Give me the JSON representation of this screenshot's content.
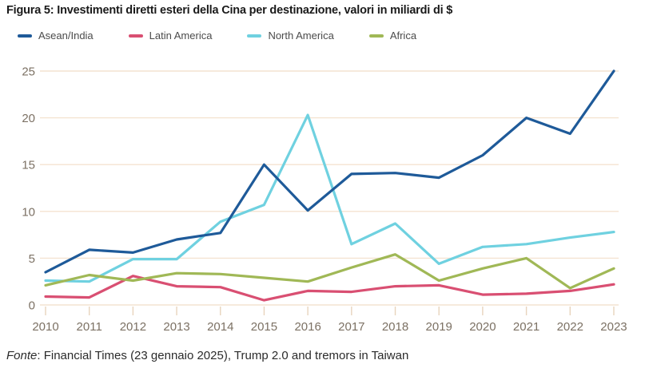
{
  "title": "Figura 5: Investimenti diretti esteri della Cina per destinazione, valori in miliardi di $",
  "source": {
    "label": "Fonte",
    "text": ": Financial Times (23 gennaio 2025), Trump 2.0 and tremors in Taiwan"
  },
  "colors": {
    "background": "#ffffff",
    "grid": "#f4e3d1",
    "tick": "#e8d4bd",
    "axis_text": "#7c7164",
    "title_text": "#1a1a1a",
    "legend_text": "#4b4b4b",
    "source_text": "#2b2b2b"
  },
  "chart_data": {
    "type": "line",
    "title": "Figura 5: Investimenti diretti esteri della Cina per destinazione, valori in miliardi di $",
    "xlabel": "",
    "ylabel": "",
    "x": [
      2010,
      2011,
      2012,
      2013,
      2014,
      2015,
      2016,
      2017,
      2018,
      2019,
      2020,
      2021,
      2022,
      2023
    ],
    "ylim": [
      0,
      25
    ],
    "y_ticks": [
      0,
      5,
      10,
      15,
      20,
      25
    ],
    "grid": true,
    "legend_position": "top",
    "series": [
      {
        "name": "Asean/India",
        "color": "#1e5a99",
        "values": [
          3.5,
          5.9,
          5.6,
          7.0,
          7.7,
          15.0,
          10.1,
          14.0,
          14.1,
          13.6,
          16.0,
          20.0,
          18.3,
          25.0
        ]
      },
      {
        "name": "Latin America",
        "color": "#d94f72",
        "values": [
          0.9,
          0.8,
          3.1,
          2.0,
          1.9,
          0.5,
          1.5,
          1.4,
          2.0,
          2.1,
          1.1,
          1.2,
          1.5,
          2.2
        ]
      },
      {
        "name": "North America",
        "color": "#6fd1e0",
        "values": [
          2.6,
          2.5,
          4.9,
          4.9,
          8.9,
          10.7,
          20.3,
          6.5,
          8.7,
          4.4,
          6.2,
          6.5,
          7.2,
          7.8
        ]
      },
      {
        "name": "Africa",
        "color": "#a0b856",
        "values": [
          2.1,
          3.2,
          2.6,
          3.4,
          3.3,
          2.9,
          2.5,
          4.0,
          5.4,
          2.6,
          3.9,
          5.0,
          1.8,
          3.9
        ]
      }
    ]
  }
}
